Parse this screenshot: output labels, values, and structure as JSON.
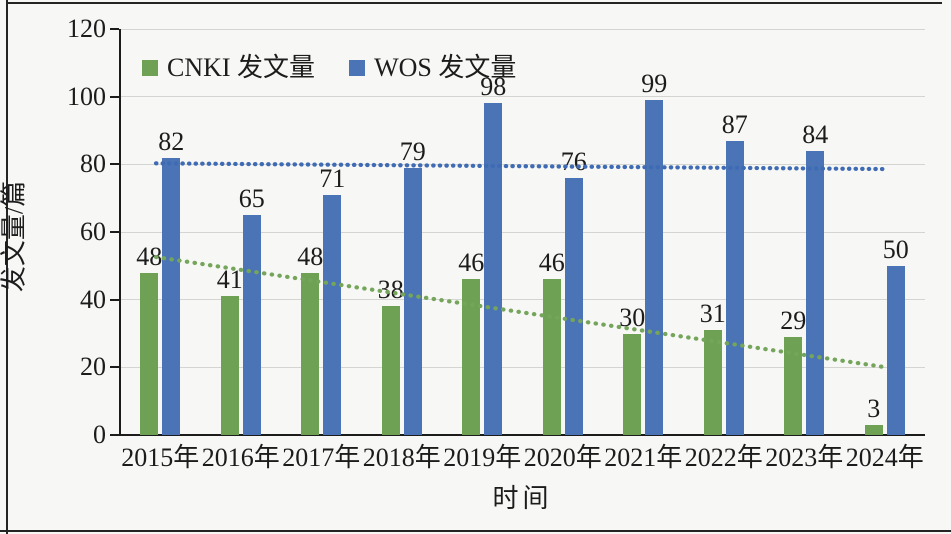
{
  "chart_data": {
    "type": "bar",
    "title": "",
    "categories": [
      "2015年",
      "2016年",
      "2017年",
      "2018年",
      "2019年",
      "2020年",
      "2021年",
      "2022年",
      "2023年",
      "2024年"
    ],
    "series": [
      {
        "name": "CNKI 发文量",
        "color": "#6ea153",
        "values": [
          48,
          41,
          48,
          38,
          46,
          46,
          30,
          31,
          29,
          3
        ]
      },
      {
        "name": "WOS 发文量",
        "color": "#4a74b5",
        "values": [
          82,
          65,
          71,
          79,
          98,
          76,
          99,
          87,
          84,
          50
        ]
      }
    ],
    "data_labels": true,
    "trendlines": [
      {
        "series": "WOS 发文量",
        "style": "dotted",
        "color": "#3f6bb4",
        "start_value": 80.3,
        "end_value": 78.6
      },
      {
        "series": "CNKI 发文量",
        "style": "dotted",
        "color": "#74a55b",
        "start_value": 52.6,
        "end_value": 20.0
      }
    ],
    "xlabel": "时间",
    "ylabel": "发文量/篇",
    "ylim": [
      0,
      120
    ],
    "yticks": [
      0,
      20,
      40,
      60,
      80,
      100,
      120
    ],
    "grid": true,
    "legend_position": "top-left-inside"
  },
  "colors": {
    "background": "#f7f7f5",
    "frame": "#242424",
    "axis": "#1c1c1c",
    "gridline": "#d4d4d1",
    "text": "#1c1c1c"
  },
  "legend": {
    "items": [
      {
        "label": "CNKI 发文量",
        "swatch": "cnki-swatch"
      },
      {
        "label": "WOS 发文量",
        "swatch": "wos-swatch"
      }
    ]
  }
}
